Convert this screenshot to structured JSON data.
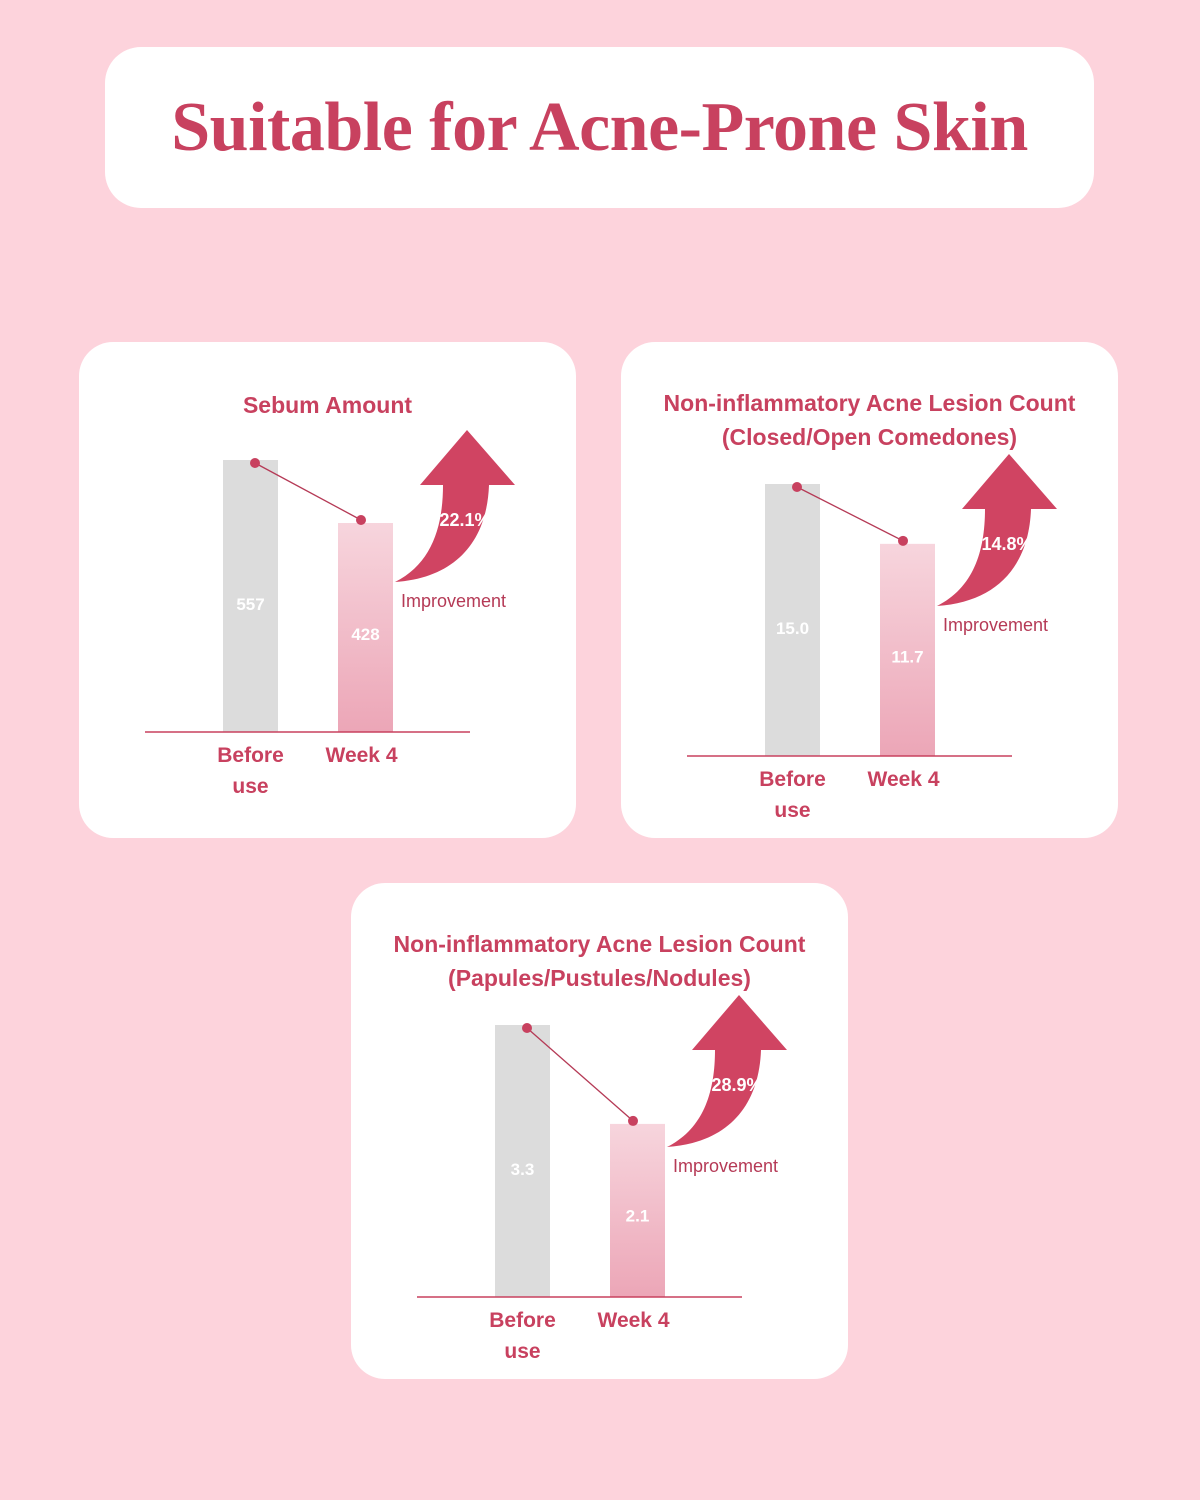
{
  "title": "Suitable for Acne-Prone Skin",
  "colors": {
    "background": "#fdd3dc",
    "accent": "#c8415f",
    "arrow": "#d04462",
    "before_bar": "#dcdcdc",
    "after_bar_top": "#f7d5dd",
    "after_bar_bottom": "#eca6b7"
  },
  "chart_data": [
    {
      "type": "bar",
      "title_lines": [
        "Sebum Amount"
      ],
      "categories": [
        "Before use",
        "Week 4"
      ],
      "values": [
        557,
        428
      ],
      "value_labels": [
        "557",
        "428"
      ],
      "improvement": "22.1%",
      "improvement_label": "Improvement",
      "icon": "curved-up-arrow-icon"
    },
    {
      "type": "bar",
      "title_lines": [
        "Non-inflammatory Acne Lesion Count",
        "(Closed/Open Comedones)"
      ],
      "categories": [
        "Before use",
        "Week 4"
      ],
      "values": [
        15.0,
        11.7
      ],
      "value_labels": [
        "15.0",
        "11.7"
      ],
      "improvement": "14.8%",
      "improvement_label": "Improvement",
      "icon": "curved-up-arrow-icon"
    },
    {
      "type": "bar",
      "title_lines": [
        "Non-inflammatory Acne Lesion Count",
        "(Papules/Pustules/Nodules)"
      ],
      "categories": [
        "Before use",
        "Week 4"
      ],
      "values": [
        3.3,
        2.1
      ],
      "value_labels": [
        "3.3",
        "2.1"
      ],
      "improvement": "28.9%",
      "improvement_label": "Improvement",
      "icon": "curved-up-arrow-icon"
    }
  ]
}
